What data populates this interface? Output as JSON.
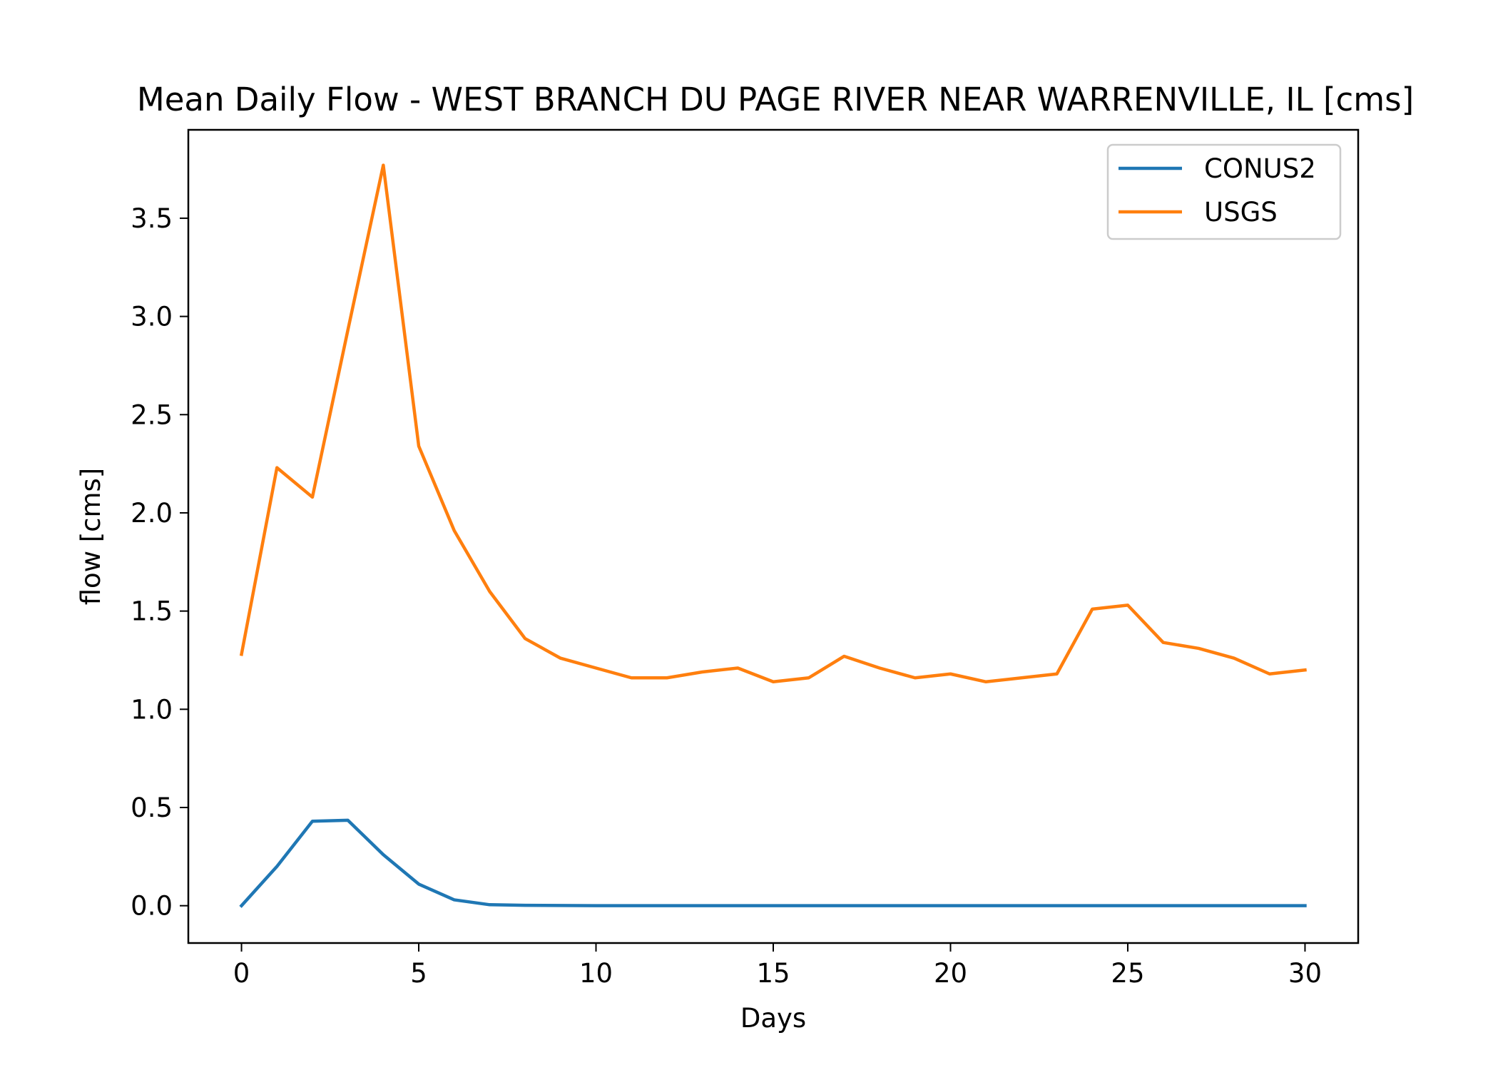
{
  "chart_data": {
    "type": "line",
    "title": "Mean Daily Flow - WEST BRANCH DU PAGE RIVER NEAR WARRENVILLE, IL [cms]",
    "xlabel": "Days",
    "ylabel": "flow [cms]",
    "xlim": [
      -1.5,
      31.5
    ],
    "ylim": [
      -0.19,
      3.95
    ],
    "xticks": [
      0,
      5,
      10,
      15,
      20,
      25,
      30
    ],
    "yticks": [
      0.0,
      0.5,
      1.0,
      1.5,
      2.0,
      2.5,
      3.0,
      3.5
    ],
    "xtick_labels": [
      "0",
      "5",
      "10",
      "15",
      "20",
      "25",
      "30"
    ],
    "ytick_labels": [
      "0.0",
      "0.5",
      "1.0",
      "1.5",
      "2.0",
      "2.5",
      "3.0",
      "3.5"
    ],
    "grid": false,
    "legend_position": "top-right",
    "x": [
      0,
      1,
      2,
      3,
      4,
      5,
      6,
      7,
      8,
      9,
      10,
      11,
      12,
      13,
      14,
      15,
      16,
      17,
      18,
      19,
      20,
      21,
      22,
      23,
      24,
      25,
      26,
      27,
      28,
      29,
      30
    ],
    "series": [
      {
        "name": "CONUS2",
        "color": "#1f77b4",
        "values": [
          0.0,
          0.2,
          0.43,
          0.435,
          0.26,
          0.11,
          0.03,
          0.005,
          0.002,
          0.001,
          0,
          0,
          0,
          0,
          0,
          0,
          0,
          0,
          0,
          0,
          0,
          0,
          0,
          0,
          0,
          0,
          0,
          0,
          0,
          0,
          0
        ]
      },
      {
        "name": "USGS",
        "color": "#ff7f0e",
        "values": [
          1.28,
          2.23,
          2.08,
          2.93,
          3.77,
          2.34,
          1.91,
          1.6,
          1.36,
          1.26,
          1.21,
          1.16,
          1.16,
          1.19,
          1.21,
          1.14,
          1.16,
          1.27,
          1.21,
          1.16,
          1.18,
          1.14,
          1.16,
          1.18,
          1.51,
          1.53,
          1.34,
          1.31,
          1.26,
          1.18,
          1.2
        ]
      }
    ]
  }
}
